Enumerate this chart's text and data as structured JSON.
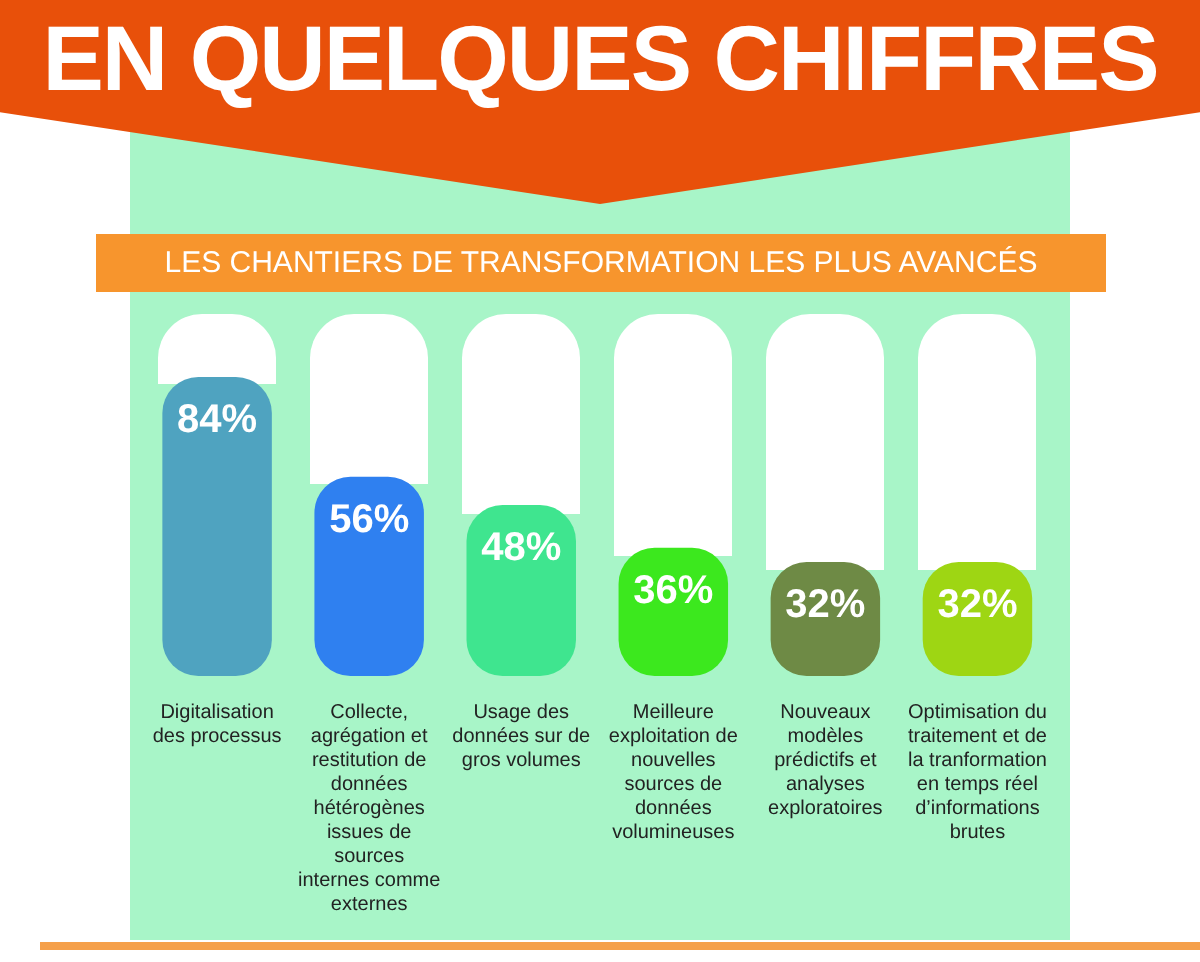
{
  "chart_data": {
    "type": "bar",
    "title": "EN QUELQUES CHIFFRES",
    "subtitle": "LES CHANTIERS DE TRANSFORMATION LES PLUS AVANCÉS",
    "categories": [
      "Digitalisation des processus",
      "Collecte, agrégation et restitution de données hétérogènes issues de sources internes comme externes",
      "Usage des données sur de gros volumes",
      "Meilleure exploitation de nouvelles sources de données volumineuses",
      "Nouveaux modèles prédictifs et analyses exploratoires",
      "Optimisation du traitement et de la tranformation en temps réel d’informations brutes"
    ],
    "values": [
      84,
      56,
      48,
      36,
      32,
      32
    ],
    "colors": [
      "#4fa3c0",
      "#2f80f0",
      "#3fe58f",
      "#3ce81e",
      "#6e8a45",
      "#9ed613"
    ],
    "value_labels": [
      "84%",
      "56%",
      "48%",
      "36%",
      "32%",
      "32%"
    ],
    "ylim": [
      0,
      100
    ],
    "tick_labels": "x",
    "grid": false,
    "legend": false
  }
}
